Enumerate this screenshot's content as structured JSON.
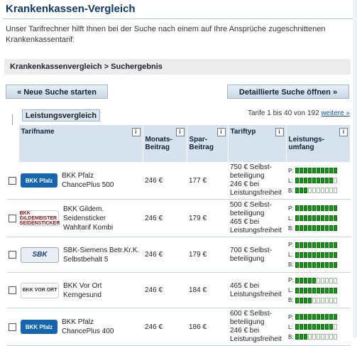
{
  "header": {
    "title": "Krankenkassen-Vergleich",
    "intro": "Unser Tarifrechner hilft Ihnen bei der Suche nach einem auf Ihre Ansprüche zugeschnittenen Krankenkassentarif:",
    "breadcrumb": "Krankenkassenvergleich > Suchergebnis"
  },
  "buttons": {
    "new_search": "« Neue Suche starten",
    "advanced_search": "Detaillierte Suche öffnen »"
  },
  "compare_tab": "Leistungsvergleich",
  "pagination": {
    "text": "Tarife 1 bis 40 von 192",
    "more": "weitere »"
  },
  "columns": {
    "tarifname": "Tarifname",
    "monatsbeitrag": "Monats-\nBeitrag",
    "sparbeitrag": "Spar-\nBeitrag",
    "tariftyp": "Tariftyp",
    "leistungsumfang": "Leistungs-\numfang",
    "info": "i"
  },
  "bar_labels": [
    "P:",
    "L:",
    "B:"
  ],
  "rows": [
    {
      "logo": "BKK Pfalz",
      "logo_class": "logo-bkkpfalz",
      "name": "BKK Pfalz\nChancePlus 500",
      "beitrag": "246 €",
      "spar": "177 €",
      "typ": "750 € Selbst-\nbeteiligung\n246 € bei\nLeistungsfreiheit",
      "P": 10,
      "L": 9,
      "B": 3
    },
    {
      "logo": "BKK GILDEMEISTER SEIDENSTICKER",
      "logo_class": "logo-bkkgild",
      "name": "BKK Gildem. Seidensticker\nWahltarif Kombi",
      "beitrag": "246 €",
      "spar": "179 €",
      "typ": "500 € Selbst-\nbeteiligung\n465 € bei\nLeistungsfreiheit",
      "P": 10,
      "L": 10,
      "B": 10
    },
    {
      "logo": "SBK",
      "logo_class": "logo-sbk",
      "name": "SBK-Siemens Betr.Kr.K.\nSelbstbehalt 5",
      "beitrag": "246 €",
      "spar": "179 €",
      "typ": "700 € Selbst-\nbeteiligung",
      "P": 10,
      "L": 10,
      "B": 10
    },
    {
      "logo": "BKK VOR ORT",
      "logo_class": "logo-bkkvor",
      "name": "BKK Vor Ort\nKerngesund",
      "beitrag": "246 €",
      "spar": "184 €",
      "typ": "465 € bei\nLeistungsfreiheit",
      "P": 5,
      "L": 10,
      "B": 4
    },
    {
      "logo": "BKK Pfalz",
      "logo_class": "logo-bkkpfalz",
      "name": "BKK Pfalz\nChancePlus 400",
      "beitrag": "246 €",
      "spar": "186 €",
      "typ": "600 € Selbst-\nbeteiligung\n246 € bei\nLeistungsfreiheit",
      "P": 10,
      "L": 9,
      "B": 3
    }
  ]
}
